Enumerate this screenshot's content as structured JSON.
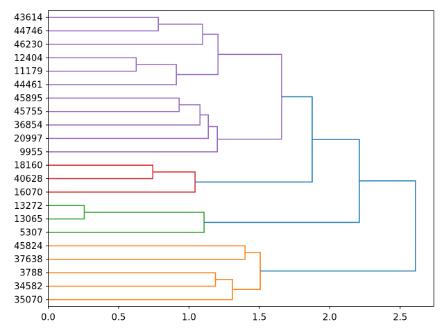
{
  "chart_data": {
    "type": "dendrogram",
    "orientation": "right",
    "title": "",
    "xlabel": "",
    "ylabel": "",
    "xlim": [
      0,
      2.74
    ],
    "xticks": [
      0.0,
      0.5,
      1.0,
      1.5,
      2.0,
      2.5
    ],
    "xtick_labels": [
      "0.0",
      "0.5",
      "1.0",
      "1.5",
      "2.0",
      "2.5"
    ],
    "grid": false,
    "leaves": [
      "43614",
      "44746",
      "46230",
      "12404",
      "11179",
      "44461",
      "45895",
      "45755",
      "36854",
      "20997",
      "9955",
      "18160",
      "40628",
      "16070",
      "13272",
      "13065",
      "5307",
      "45824",
      "37638",
      "3788",
      "34582",
      "35070"
    ],
    "colors": {
      "purple": "#9467bd",
      "red": "#d62728",
      "green": "#2ca02c",
      "orange": "#ff7f0e",
      "blue": "#1f77b4"
    },
    "links": [
      {
        "id": 22,
        "children": [
          0,
          1
        ],
        "height": 0.782,
        "color": "purple"
      },
      {
        "id": 23,
        "children": [
          22,
          2
        ],
        "height": 1.097,
        "color": "purple"
      },
      {
        "id": 24,
        "children": [
          3,
          4
        ],
        "height": 0.625,
        "color": "purple"
      },
      {
        "id": 25,
        "children": [
          24,
          5
        ],
        "height": 0.91,
        "color": "purple"
      },
      {
        "id": 26,
        "children": [
          23,
          25
        ],
        "height": 1.206,
        "color": "purple"
      },
      {
        "id": 27,
        "children": [
          6,
          7
        ],
        "height": 0.93,
        "color": "purple"
      },
      {
        "id": 28,
        "children": [
          27,
          8
        ],
        "height": 1.078,
        "color": "purple"
      },
      {
        "id": 29,
        "children": [
          28,
          9
        ],
        "height": 1.137,
        "color": "purple"
      },
      {
        "id": 30,
        "children": [
          29,
          10
        ],
        "height": 1.201,
        "color": "purple"
      },
      {
        "id": 31,
        "children": [
          26,
          30
        ],
        "height": 1.658,
        "color": "purple"
      },
      {
        "id": 32,
        "children": [
          11,
          12
        ],
        "height": 0.743,
        "color": "red"
      },
      {
        "id": 33,
        "children": [
          32,
          13
        ],
        "height": 1.043,
        "color": "red"
      },
      {
        "id": 34,
        "children": [
          31,
          33
        ],
        "height": 1.875,
        "color": "blue"
      },
      {
        "id": 35,
        "children": [
          14,
          15
        ],
        "height": 0.256,
        "color": "green"
      },
      {
        "id": 36,
        "children": [
          35,
          16
        ],
        "height": 1.107,
        "color": "green"
      },
      {
        "id": 37,
        "children": [
          34,
          36
        ],
        "height": 2.21,
        "color": "blue"
      },
      {
        "id": 38,
        "children": [
          17,
          18
        ],
        "height": 1.398,
        "color": "orange"
      },
      {
        "id": 39,
        "children": [
          19,
          20
        ],
        "height": 1.188,
        "color": "orange"
      },
      {
        "id": 40,
        "children": [
          39,
          21
        ],
        "height": 1.309,
        "color": "orange"
      },
      {
        "id": 41,
        "children": [
          38,
          40
        ],
        "height": 1.506,
        "color": "orange"
      },
      {
        "id": 42,
        "children": [
          37,
          41
        ],
        "height": 2.609,
        "color": "blue"
      }
    ]
  }
}
